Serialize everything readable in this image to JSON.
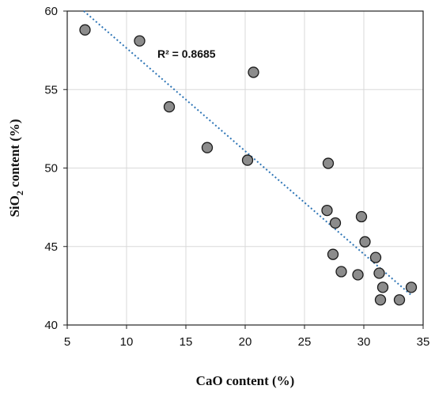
{
  "chart_data": {
    "type": "scatter",
    "title": "",
    "xlabel": "CaO content (%)",
    "ylabel_main": "SiO",
    "ylabel_sub": "2",
    "ylabel_rest": " content (%)",
    "xlim": [
      5,
      35
    ],
    "ylim": [
      40,
      60
    ],
    "xticks": [
      5,
      10,
      15,
      20,
      25,
      30,
      35
    ],
    "yticks": [
      40,
      45,
      50,
      55,
      60
    ],
    "grid": true,
    "legend": "none",
    "points": [
      {
        "x": 6.5,
        "y": 58.8
      },
      {
        "x": 11.1,
        "y": 58.1
      },
      {
        "x": 13.6,
        "y": 53.9
      },
      {
        "x": 16.8,
        "y": 51.3
      },
      {
        "x": 20.2,
        "y": 50.5
      },
      {
        "x": 20.7,
        "y": 56.1
      },
      {
        "x": 27.0,
        "y": 50.3
      },
      {
        "x": 26.9,
        "y": 47.3
      },
      {
        "x": 27.6,
        "y": 46.5
      },
      {
        "x": 27.4,
        "y": 44.5
      },
      {
        "x": 28.1,
        "y": 43.4
      },
      {
        "x": 29.5,
        "y": 43.2
      },
      {
        "x": 29.8,
        "y": 46.9
      },
      {
        "x": 30.1,
        "y": 45.3
      },
      {
        "x": 31.0,
        "y": 44.3
      },
      {
        "x": 31.3,
        "y": 43.3
      },
      {
        "x": 31.6,
        "y": 42.4
      },
      {
        "x": 31.4,
        "y": 41.6
      },
      {
        "x": 33.0,
        "y": 41.6
      },
      {
        "x": 34.0,
        "y": 42.4
      }
    ],
    "trendline": {
      "x": [
        6.4,
        34.0
      ],
      "y": [
        60.0,
        41.9
      ]
    },
    "annotation": "R² = 0.8685",
    "colors": {
      "marker_fill": "#8c8c8c",
      "marker_stroke": "#1a1a1a",
      "trendline": "#2e75b6",
      "grid": "#d9d9d9"
    }
  }
}
